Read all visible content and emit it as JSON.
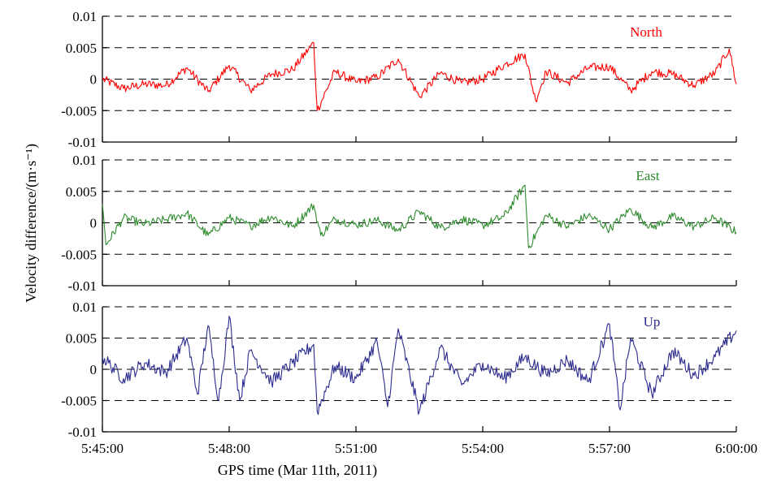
{
  "chart_data": {
    "type": "line",
    "xlabel": "GPS time (Mar 11th, 2011)",
    "ylabel": "Velocity difference/(m·s⁻¹)",
    "x_start": "5:45:00",
    "x_end": "6:00:00",
    "x_ticks": [
      "5:45:00",
      "5:48:00",
      "5:51:00",
      "5:54:00",
      "5:57:00",
      "6:00:00"
    ],
    "y_ticks": [
      "0.01",
      "0.005",
      "0",
      "-0.005",
      "-0.01"
    ],
    "ylim": [
      -0.01,
      0.01
    ],
    "grid": "horizontal dashed",
    "panels": [
      {
        "label": "North",
        "color": "#ff0000",
        "series": [
          {
            "x": "5:45:00",
            "y": 0.0
          },
          {
            "x": "5:45:30",
            "y": -0.0015
          },
          {
            "x": "5:46:00",
            "y": -0.0008
          },
          {
            "x": "5:46:30",
            "y": -0.001
          },
          {
            "x": "5:47:00",
            "y": 0.0018
          },
          {
            "x": "5:47:30",
            "y": -0.002
          },
          {
            "x": "5:48:00",
            "y": 0.0022
          },
          {
            "x": "5:48:30",
            "y": -0.0018
          },
          {
            "x": "5:49:00",
            "y": 0.0008
          },
          {
            "x": "5:49:30",
            "y": 0.0015
          },
          {
            "x": "5:50:00",
            "y": 0.0058
          },
          {
            "x": "5:50:05",
            "y": -0.005
          },
          {
            "x": "5:50:30",
            "y": 0.0012
          },
          {
            "x": "5:51:00",
            "y": -0.0005
          },
          {
            "x": "5:51:30",
            "y": 0.0003
          },
          {
            "x": "5:52:00",
            "y": 0.0032
          },
          {
            "x": "5:52:30",
            "y": -0.0028
          },
          {
            "x": "5:53:00",
            "y": 0.001
          },
          {
            "x": "5:53:30",
            "y": -0.0006
          },
          {
            "x": "5:54:00",
            "y": 0.0
          },
          {
            "x": "5:54:30",
            "y": 0.0022
          },
          {
            "x": "5:55:00",
            "y": 0.004
          },
          {
            "x": "5:55:15",
            "y": -0.0034
          },
          {
            "x": "5:55:30",
            "y": 0.0012
          },
          {
            "x": "5:56:00",
            "y": -0.0006
          },
          {
            "x": "5:56:30",
            "y": 0.0018
          },
          {
            "x": "5:57:00",
            "y": 0.002
          },
          {
            "x": "5:57:30",
            "y": -0.0018
          },
          {
            "x": "5:58:00",
            "y": 0.0012
          },
          {
            "x": "5:58:30",
            "y": 0.0008
          },
          {
            "x": "5:59:00",
            "y": -0.001
          },
          {
            "x": "5:59:30",
            "y": 0.001
          },
          {
            "x": "5:59:50",
            "y": 0.0048
          },
          {
            "x": "6:00:00",
            "y": -0.0008
          }
        ]
      },
      {
        "label": "East",
        "color": "#2e8b2e",
        "series": [
          {
            "x": "5:45:00",
            "y": 0.003
          },
          {
            "x": "5:45:05",
            "y": -0.0035
          },
          {
            "x": "5:45:30",
            "y": 0.0008
          },
          {
            "x": "5:46:00",
            "y": -0.0002
          },
          {
            "x": "5:46:30",
            "y": 0.0005
          },
          {
            "x": "5:47:00",
            "y": 0.0015
          },
          {
            "x": "5:47:30",
            "y": -0.002
          },
          {
            "x": "5:48:00",
            "y": 0.0008
          },
          {
            "x": "5:48:30",
            "y": -0.0005
          },
          {
            "x": "5:49:00",
            "y": 0.001
          },
          {
            "x": "5:49:30",
            "y": -0.0006
          },
          {
            "x": "5:50:00",
            "y": 0.0028
          },
          {
            "x": "5:50:10",
            "y": -0.002
          },
          {
            "x": "5:50:30",
            "y": 0.0006
          },
          {
            "x": "5:51:00",
            "y": -0.0003
          },
          {
            "x": "5:51:30",
            "y": 0.0004
          },
          {
            "x": "5:52:00",
            "y": -0.0012
          },
          {
            "x": "5:52:30",
            "y": 0.0018
          },
          {
            "x": "5:53:00",
            "y": -0.0008
          },
          {
            "x": "5:53:30",
            "y": 0.0006
          },
          {
            "x": "5:54:00",
            "y": -0.0004
          },
          {
            "x": "5:54:30",
            "y": 0.001
          },
          {
            "x": "5:55:00",
            "y": 0.006
          },
          {
            "x": "5:55:05",
            "y": -0.004
          },
          {
            "x": "5:55:30",
            "y": 0.0012
          },
          {
            "x": "5:56:00",
            "y": -0.0006
          },
          {
            "x": "5:56:30",
            "y": 0.0012
          },
          {
            "x": "5:57:00",
            "y": -0.001
          },
          {
            "x": "5:57:30",
            "y": 0.0022
          },
          {
            "x": "5:58:00",
            "y": -0.0008
          },
          {
            "x": "5:58:30",
            "y": 0.001
          },
          {
            "x": "5:59:00",
            "y": -0.0006
          },
          {
            "x": "5:59:30",
            "y": 0.0008
          },
          {
            "x": "6:00:00",
            "y": -0.0015
          }
        ]
      },
      {
        "label": "Up",
        "color": "#2b2b8f",
        "series": [
          {
            "x": "5:45:00",
            "y": 0.002
          },
          {
            "x": "5:45:30",
            "y": -0.0015
          },
          {
            "x": "5:46:00",
            "y": 0.001
          },
          {
            "x": "5:46:30",
            "y": -0.0005
          },
          {
            "x": "5:47:00",
            "y": 0.005
          },
          {
            "x": "5:47:15",
            "y": -0.004
          },
          {
            "x": "5:47:30",
            "y": 0.007
          },
          {
            "x": "5:47:45",
            "y": -0.005
          },
          {
            "x": "5:48:00",
            "y": 0.0085
          },
          {
            "x": "5:48:15",
            "y": -0.005
          },
          {
            "x": "5:48:30",
            "y": 0.003
          },
          {
            "x": "5:49:00",
            "y": -0.002
          },
          {
            "x": "5:49:30",
            "y": 0.001
          },
          {
            "x": "5:50:00",
            "y": 0.004
          },
          {
            "x": "5:50:05",
            "y": -0.0068
          },
          {
            "x": "5:50:30",
            "y": 0.0005
          },
          {
            "x": "5:51:00",
            "y": -0.0015
          },
          {
            "x": "5:51:30",
            "y": 0.0045
          },
          {
            "x": "5:51:45",
            "y": -0.006
          },
          {
            "x": "5:52:00",
            "y": 0.0065
          },
          {
            "x": "5:52:30",
            "y": -0.0068
          },
          {
            "x": "5:53:00",
            "y": 0.0035
          },
          {
            "x": "5:53:30",
            "y": -0.0025
          },
          {
            "x": "5:54:00",
            "y": 0.001
          },
          {
            "x": "5:54:30",
            "y": -0.0015
          },
          {
            "x": "5:55:00",
            "y": 0.002
          },
          {
            "x": "5:55:30",
            "y": -0.0008
          },
          {
            "x": "5:56:00",
            "y": 0.0015
          },
          {
            "x": "5:56:30",
            "y": -0.002
          },
          {
            "x": "5:57:00",
            "y": 0.0072
          },
          {
            "x": "5:57:15",
            "y": -0.0065
          },
          {
            "x": "5:57:30",
            "y": 0.005
          },
          {
            "x": "5:58:00",
            "y": -0.004
          },
          {
            "x": "5:58:30",
            "y": 0.003
          },
          {
            "x": "5:59:00",
            "y": -0.001
          },
          {
            "x": "5:59:30",
            "y": 0.002
          },
          {
            "x": "6:00:00",
            "y": 0.0062
          }
        ]
      }
    ]
  }
}
